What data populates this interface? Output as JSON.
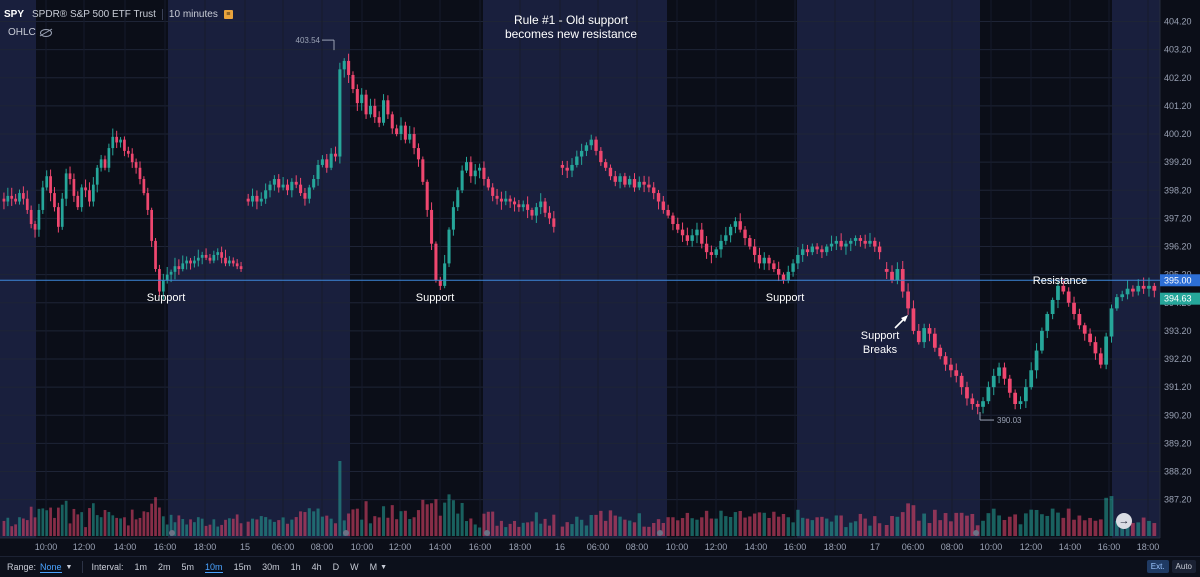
{
  "header": {
    "symbol": "SPY",
    "name": "SPDR® S&P 500 ETF Trust",
    "interval": "10 minutes",
    "indicator": "OHLC"
  },
  "chart_data": {
    "type": "candlestick",
    "title": "Rule #1 - Old support becomes new resistance",
    "y_axis_ticks": [
      404.2,
      403.2,
      402.2,
      401.2,
      400.2,
      399.2,
      398.2,
      397.2,
      396.2,
      395.2,
      394.2,
      393.2,
      392.2,
      391.2,
      390.2,
      389.2,
      388.2,
      387.2
    ],
    "ylim": [
      386.6,
      404.45
    ],
    "x_tick_labels": [
      "10:00",
      "12:00",
      "14:00",
      "16:00",
      "18:00",
      "15",
      "06:00",
      "08:00",
      "10:00",
      "12:00",
      "14:00",
      "16:00",
      "18:00",
      "16",
      "06:00",
      "08:00",
      "10:00",
      "12:00",
      "14:00",
      "16:00",
      "18:00",
      "17",
      "06:00",
      "08:00",
      "10:00",
      "12:00",
      "14:00",
      "16:00",
      "18:00"
    ],
    "current_price": 394.63,
    "resistance_level": 395.0,
    "high_marker": 403.54,
    "low_marker": 390.03,
    "annotations": [
      {
        "text": "Support",
        "price": 394.6
      },
      {
        "text": "Support",
        "price": 394.6
      },
      {
        "text": "Support",
        "price": 394.6
      },
      {
        "text": "Support Breaks",
        "price": 393.4
      },
      {
        "text": "Resistance",
        "price": 395.3
      }
    ],
    "series": [
      {
        "segment": "day1",
        "close": [
          397.8,
          398.0,
          397.9,
          397.8,
          398.1,
          397.9,
          397.5,
          397.0,
          396.8,
          397.5,
          398.3,
          398.7,
          398.1,
          397.6,
          396.9,
          397.9,
          398.8,
          398.6,
          398.0,
          397.6,
          398.3,
          398.2,
          397.8,
          398.4,
          399.0,
          399.3,
          399.0,
          399.7,
          400.1,
          399.9,
          400.0,
          399.6,
          399.5,
          399.2,
          399.0,
          398.6,
          398.1,
          397.5,
          396.4,
          395.4,
          394.6,
          395.0,
          395.2,
          395.3,
          395.5,
          395.4,
          395.6,
          395.7,
          395.6,
          395.7,
          395.8,
          395.9,
          395.8,
          395.7,
          395.9,
          396.0,
          395.8,
          395.6,
          395.7,
          395.6,
          395.5,
          395.4
        ]
      },
      {
        "segment": "day2",
        "close": [
          397.8,
          398.0,
          397.8,
          397.9,
          398.2,
          398.4,
          398.6,
          398.3,
          398.4,
          398.2,
          398.5,
          398.4,
          398.1,
          397.9,
          398.3,
          398.6,
          399.1,
          399.3,
          399.0,
          399.5,
          399.4,
          402.5,
          402.8,
          402.3,
          401.8,
          401.3,
          401.6,
          400.9,
          401.2,
          400.8,
          400.6,
          401.4,
          400.9,
          400.4,
          400.2,
          400.5,
          400.0,
          400.2,
          399.7,
          399.3,
          398.5,
          397.5,
          396.3,
          395.0,
          394.8,
          395.6,
          396.8,
          397.6,
          398.2,
          398.9,
          399.2,
          398.7,
          398.9,
          399.0,
          398.6,
          398.3,
          398.0,
          397.9,
          397.8,
          397.9,
          397.8,
          397.7,
          397.6,
          397.7,
          397.5,
          397.3,
          397.6,
          397.8,
          397.4,
          397.2,
          396.9
        ]
      },
      {
        "segment": "day3",
        "close": [
          399.0,
          398.9,
          399.1,
          399.4,
          399.6,
          399.8,
          400.0,
          399.6,
          399.2,
          399.0,
          398.7,
          398.5,
          398.7,
          398.4,
          398.6,
          398.3,
          398.5,
          398.4,
          398.3,
          398.1,
          397.8,
          397.5,
          397.3,
          397.0,
          396.8,
          396.6,
          396.4,
          396.6,
          396.8,
          396.3,
          396.0,
          395.9,
          396.1,
          396.4,
          396.6,
          396.9,
          397.1,
          396.8,
          396.5,
          396.2,
          395.9,
          395.6,
          395.8,
          395.6,
          395.4,
          395.2,
          395.0,
          395.3,
          395.6,
          395.9,
          396.1,
          396.0,
          396.2,
          396.1,
          396.0,
          396.2,
          396.3,
          396.4,
          396.2,
          396.3,
          396.4,
          396.5,
          396.4,
          396.3,
          396.4,
          396.2,
          396.0
        ]
      },
      {
        "segment": "day4",
        "close": [
          395.3,
          395.0,
          395.4,
          394.6,
          394.0,
          393.2,
          392.8,
          393.3,
          393.1,
          392.6,
          392.3,
          392.0,
          391.8,
          391.6,
          391.2,
          390.8,
          390.6,
          390.5,
          390.7,
          391.2,
          391.6,
          391.9,
          391.5,
          391.0,
          390.6,
          390.7,
          391.2,
          391.8,
          392.5,
          393.2,
          393.8,
          394.3,
          394.8,
          394.6,
          394.2,
          393.8,
          393.4,
          393.1,
          392.8,
          392.4,
          392.0,
          393.0,
          394.0,
          394.4,
          394.5,
          394.7,
          394.6,
          394.8,
          394.7,
          394.8,
          394.63
        ]
      }
    ],
    "volume": {
      "max_label": "relative",
      "note": "volume bars along bottom of plot"
    }
  },
  "bottom_bar": {
    "range_label": "Range:",
    "range_value": "None",
    "interval_label": "Interval:",
    "intervals": [
      "1m",
      "2m",
      "5m",
      "10m",
      "15m",
      "30m",
      "1h",
      "4h",
      "D",
      "W",
      "M"
    ],
    "active_interval": "10m",
    "ext_label": "Ext.",
    "auto_label": "Auto"
  },
  "colors": {
    "up": "#26a69a",
    "down": "#ef476f",
    "session_shade": "#1c2244",
    "background": "#0b0e18",
    "resistance_line": "#3d87d9",
    "price_tag": "#26a69a",
    "resistance_tag": "#2d6fd6"
  }
}
